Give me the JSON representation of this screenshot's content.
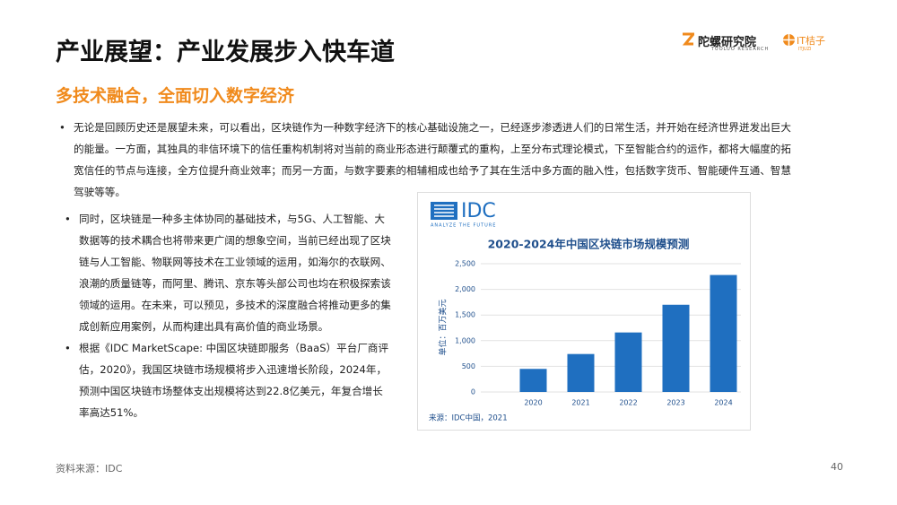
{
  "header": {
    "title": "产业展望：产业发展步入快车道",
    "subtitle": "多技术融合，全面切入数字经济",
    "logo_main": "陀螺研究院",
    "logo_sub": "TUOLUO RESEARCH",
    "logo_partner": "IT桔子",
    "logo_partner_sub": "ITJUZI"
  },
  "paragraphs": [
    "无论是回顾历史还是展望未来，可以看出，区块链作为一种数字经济下的核心基础设施之一，已经逐步渗透进人们的日常生活，并开始在经济世界迸发出巨大的能量。一方面，其独具的非信环境下的信任重构机制将对当前的商业形态进行颠覆式的重构，上至分布式理论模式，下至智能合约的运作，都将大幅度的拓宽信任的节点与连接，全方位提升商业效率；而另一方面，与数字要素的相辅相成也给予了其在生活中多方面的融入性，包括数字货币、智能硬件互通、智慧驾驶等等。",
    "同时，区块链是一种多主体协同的基础技术，与5G、人工智能、大数据等的技术耦合也将带来更广阔的想象空间，当前已经出现了区块链与人工智能、物联网等技术在工业领域的运用，如海尔的衣联网、浪潮的质量链等，而阿里、腾讯、京东等头部公司也均在积极探索该领域的运用。在未来，可以预见，多技术的深度融合将推动更多的集成创新应用案例，从而构建出具有高价值的商业场景。",
    "根据《IDC MarketScape: 中国区块链即服务（BaaS）平台厂商评估，2020》，我国区块链市场规模将步入迅速增长阶段，2024年，预测中国区块链市场整体支出规模将达到22.8亿美元，年复合增长率高达51%。"
  ],
  "chart": {
    "type": "bar",
    "logo": "IDC",
    "logo_tagline": "ANALYZE THE FUTURE",
    "title": "2020-2024年中国区块链市场规模预测",
    "ylabel": "单位：百万美元",
    "source": "来源：IDC中国，2021",
    "categories": [
      "2020",
      "2021",
      "2022",
      "2023",
      "2024"
    ],
    "values": [
      450,
      740,
      1160,
      1700,
      2280
    ],
    "color": "#1f6fc0",
    "ylim": [
      0,
      2500
    ],
    "yticks": [
      0,
      500,
      {
        "value": 1000,
        "label": "1,000"
      },
      {
        "value": 1500,
        "label": "1,500"
      },
      {
        "value": 2000,
        "label": "2,000"
      },
      {
        "value": 2500,
        "label": "2,500"
      }
    ],
    "grid": true
  },
  "footer": {
    "source": "资料来源：IDC",
    "page": "40"
  }
}
